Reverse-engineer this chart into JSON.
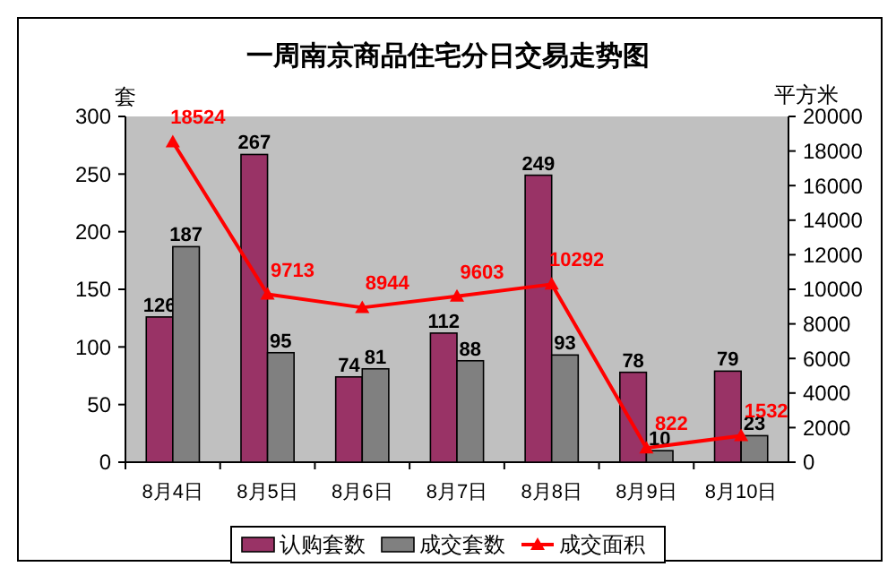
{
  "chart_data": {
    "type": "bar",
    "title": "一周南京商品住宅分日交易走势图",
    "ylabel": "套",
    "y2label": "平方米",
    "categories": [
      "8月4日",
      "8月5日",
      "8月6日",
      "8月7日",
      "8月8日",
      "8月9日",
      "8月10日"
    ],
    "series": [
      {
        "name": "认购套数",
        "color": "#993366",
        "values": [
          126,
          267,
          74,
          112,
          249,
          78,
          79
        ]
      },
      {
        "name": "成交套数",
        "color": "#808080",
        "values": [
          187,
          95,
          81,
          88,
          93,
          10,
          23
        ]
      },
      {
        "name": "成交面积",
        "type": "line",
        "axis": "y2",
        "color": "#ff0000",
        "values": [
          18524,
          9713,
          8944,
          9603,
          10292,
          822,
          1532
        ]
      }
    ],
    "ylim": [
      0,
      300
    ],
    "yticks": [
      0,
      50,
      100,
      150,
      200,
      250,
      300
    ],
    "y2lim": [
      0,
      20000
    ],
    "y2ticks": [
      0,
      2000,
      4000,
      6000,
      8000,
      10000,
      12000,
      14000,
      16000,
      18000,
      20000
    ],
    "data_labels": true,
    "legend": "bottom",
    "marker": "triangle",
    "line_style": "solid",
    "grid": false
  }
}
